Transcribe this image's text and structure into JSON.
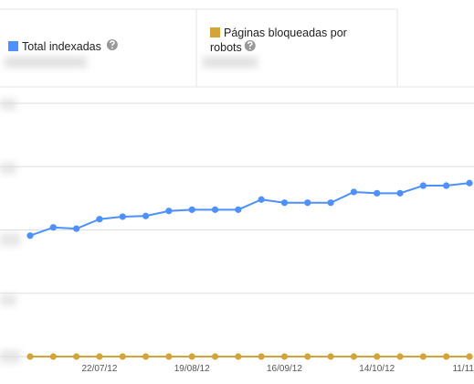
{
  "chart_data": {
    "type": "line",
    "categories": [
      null,
      null,
      null,
      "22/07/12",
      null,
      null,
      null,
      "19/08/12",
      null,
      null,
      null,
      "16/09/12",
      null,
      null,
      null,
      "14/10/12",
      null,
      null,
      null,
      "11/11"
    ],
    "series": [
      {
        "name": "Total indexadas",
        "color": "#4d90fe",
        "values": [
          1.91,
          2.04,
          2.02,
          2.17,
          2.21,
          2.22,
          2.3,
          2.32,
          2.32,
          2.32,
          2.48,
          2.43,
          2.43,
          2.43,
          2.6,
          2.58,
          2.58,
          2.7,
          2.7,
          2.74
        ]
      },
      {
        "name": "Páginas bloqueadas por robots",
        "color": "#d4a43a",
        "values": [
          0,
          0,
          0,
          0,
          0,
          0,
          0,
          0,
          0,
          0,
          0,
          0,
          0,
          0,
          0,
          0,
          0,
          0,
          0,
          0
        ]
      }
    ],
    "ylim": [
      0,
      4
    ],
    "yticks": [
      0,
      1,
      2,
      3,
      4
    ],
    "grid": true
  }
}
